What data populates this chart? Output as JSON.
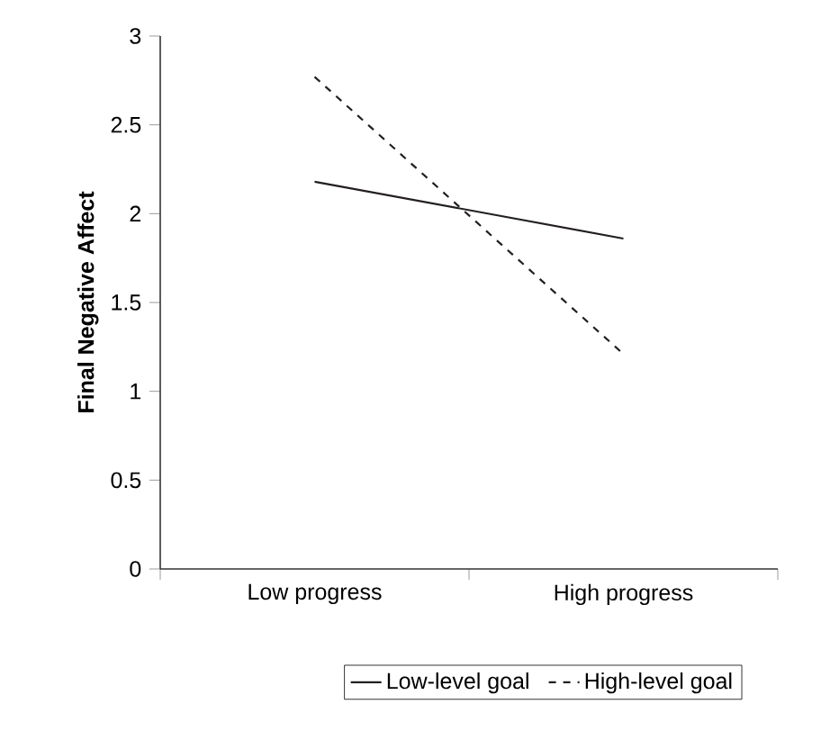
{
  "chart_data": {
    "type": "line",
    "ylabel": "Final Negative Affect",
    "categories": [
      "Low progress",
      "High progress"
    ],
    "series": [
      {
        "name": "Low-level goal",
        "color": "#231f20",
        "line_style": "solid",
        "values": [
          2.18,
          1.86
        ]
      },
      {
        "name": "High-level goal",
        "color": "#231f20",
        "line_style": "dashed",
        "values": [
          2.77,
          1.21
        ]
      }
    ],
    "ylim": [
      0,
      3
    ],
    "yticks": [
      0,
      0.5,
      1,
      1.5,
      2,
      2.5,
      3
    ],
    "legend": "bottom",
    "grid": false,
    "marker": "none"
  }
}
